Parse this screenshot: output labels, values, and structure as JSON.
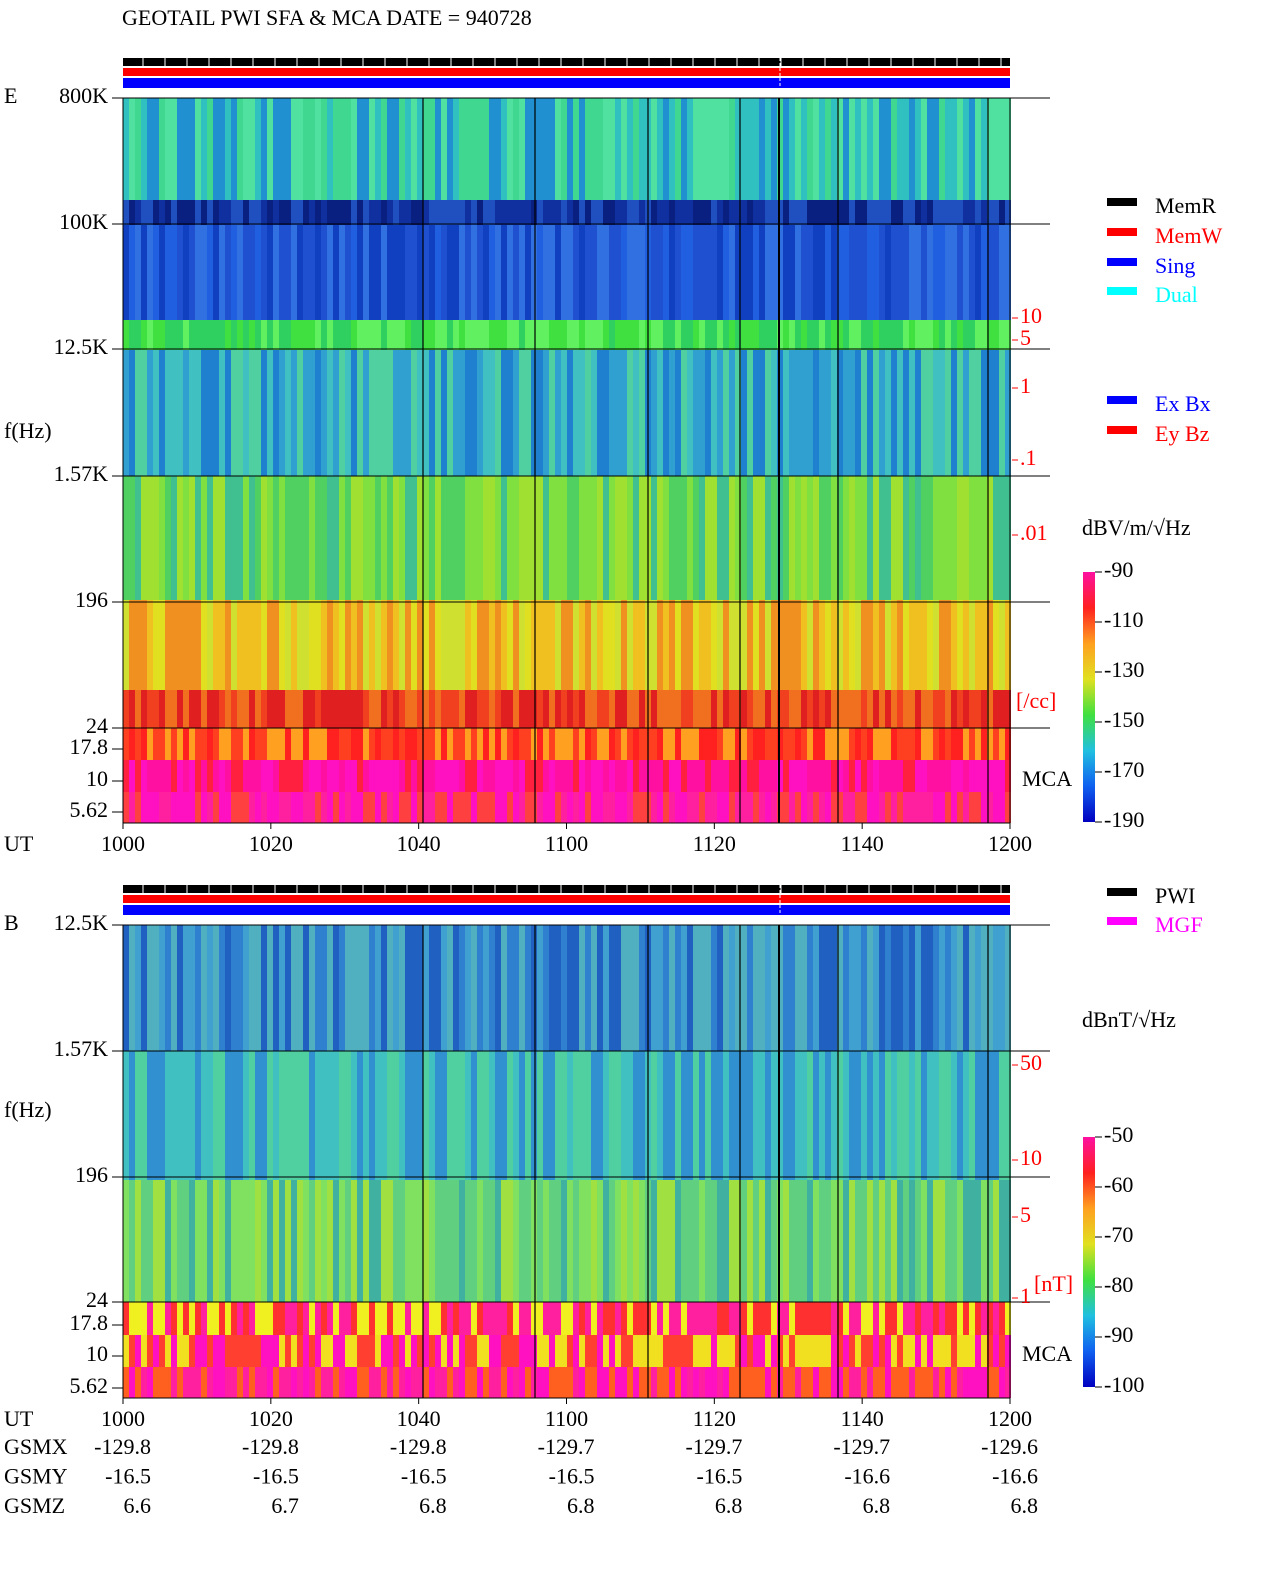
{
  "title": "GEOTAIL  PWI SFA & MCA   DATE = 940728",
  "panels": [
    {
      "label": "E",
      "ylabel": "f(Hz)",
      "xlabel": "UT",
      "yticks": [
        "800K",
        "100K",
        "12.5K",
        "1.57K",
        "196",
        "24",
        "17.8",
        "10",
        "5.62"
      ],
      "xticks": [
        "1000",
        "1020",
        "1040",
        "1100",
        "1120",
        "1140",
        "1200"
      ],
      "mca": "MCA",
      "right_ticks": [
        "10",
        "5",
        "1",
        ".1",
        ".01"
      ],
      "right_unit": "[/cc]",
      "colorbar": {
        "unit": "dBV/m/√Hz",
        "ticks": [
          -90,
          -110,
          -130,
          -150,
          -170,
          -190
        ]
      },
      "legend": [
        {
          "name": "MemR",
          "color": "#000000"
        },
        {
          "name": "MemW",
          "color": "#ff0000"
        },
        {
          "name": "Sing",
          "color": "#0000ff"
        },
        {
          "name": "Dual",
          "color": "#00ffff"
        }
      ],
      "legend2": [
        {
          "name": "Ex Bx",
          "color": "#0000ff"
        },
        {
          "name": "Ey Bz",
          "color": "#ff0000"
        }
      ]
    },
    {
      "label": "B",
      "ylabel": "f(Hz)",
      "xlabel": "UT",
      "yticks": [
        "12.5K",
        "1.57K",
        "196",
        "24",
        "17.8",
        "10",
        "5.62"
      ],
      "xticks": [
        "1000",
        "1020",
        "1040",
        "1100",
        "1120",
        "1140",
        "1200"
      ],
      "mca": "MCA",
      "right_ticks": [
        "50",
        "10",
        "5",
        "1"
      ],
      "right_unit": "[nT]",
      "colorbar": {
        "unit": "dBnT/√Hz",
        "ticks": [
          -50,
          -60,
          -70,
          -80,
          -90,
          -100
        ]
      },
      "legend": [
        {
          "name": "PWI",
          "color": "#000000"
        },
        {
          "name": "MGF",
          "color": "#ff00ff"
        }
      ]
    }
  ],
  "orbit": [
    {
      "name": "GSMX",
      "values": [
        -129.8,
        -129.8,
        -129.8,
        -129.7,
        -129.7,
        -129.7,
        -129.6
      ]
    },
    {
      "name": "GSMY",
      "values": [
        -16.5,
        -16.5,
        -16.5,
        -16.5,
        -16.5,
        -16.6,
        -16.6
      ]
    },
    {
      "name": "GSMZ",
      "values": [
        6.6,
        6.7,
        6.8,
        6.8,
        6.8,
        6.8,
        6.8
      ]
    }
  ]
}
